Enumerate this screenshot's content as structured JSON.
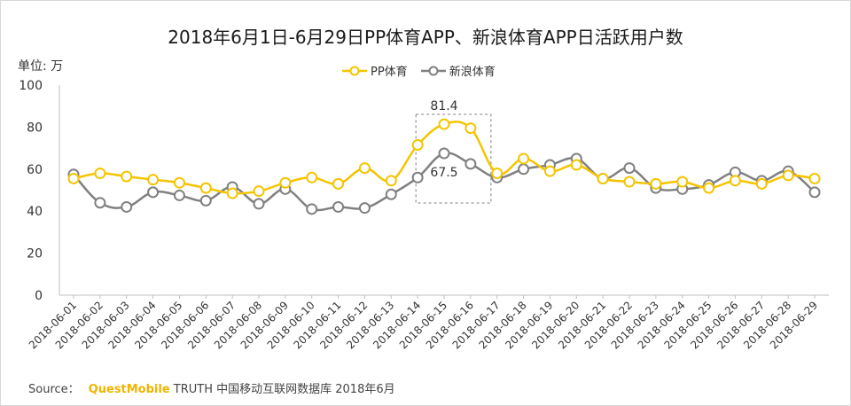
{
  "title": "2018年6月1日-6月29日PP体育APP、新浪体育APP日活跃用户数",
  "unit_label": "单位: 万",
  "source": {
    "prefix": "Source：",
    "brand": "QuestMobile",
    "rest": "TRUTH 中国移动互联网数据库 2018年6月"
  },
  "colors": {
    "pp": "#f5c400",
    "sina": "#808080",
    "axis": "#bfbfbf",
    "highlight_box": "#808080"
  },
  "chart_data": {
    "type": "line",
    "title": "2018年6月1日-6月29日PP体育APP、新浪体育APP日活跃用户数",
    "ylabel": "单位: 万",
    "ylim": [
      0,
      100
    ],
    "yticks": [
      0,
      20,
      40,
      60,
      80,
      100
    ],
    "grid": false,
    "legend_position": "top-center",
    "categories": [
      "2018-06-01",
      "2018-06-02",
      "2018-06-03",
      "2018-06-04",
      "2018-06-05",
      "2018-06-06",
      "2018-06-07",
      "2018-06-08",
      "2018-06-09",
      "2018-06-10",
      "2018-06-11",
      "2018-06-12",
      "2018-06-13",
      "2018-06-14",
      "2018-06-15",
      "2018-06-16",
      "2018-06-17",
      "2018-06-18",
      "2018-06-19",
      "2018-06-20",
      "2018-06-21",
      "2018-06-22",
      "2018-06-23",
      "2018-06-24",
      "2018-06-25",
      "2018-06-26",
      "2018-06-27",
      "2018-06-28",
      "2018-06-29"
    ],
    "series": [
      {
        "name": "PP体育",
        "values": [
          55.5,
          58,
          56.5,
          55,
          53.5,
          51,
          48.5,
          49.5,
          53.5,
          56,
          53,
          60.5,
          54.5,
          71.5,
          81.4,
          79.5,
          58,
          65,
          59,
          62,
          55.5,
          54,
          53,
          54,
          51,
          54.5,
          53,
          57,
          55.5
        ]
      },
      {
        "name": "新浪体育",
        "values": [
          57.5,
          44,
          42,
          49,
          47.5,
          45,
          51.5,
          43.5,
          50.5,
          41,
          42,
          41.5,
          48,
          56,
          67.5,
          62.5,
          56,
          60,
          62,
          65,
          55.5,
          60.5,
          51,
          50.5,
          52.5,
          58.5,
          54.5,
          59,
          49
        ]
      }
    ],
    "annotations": [
      {
        "text": "81.4",
        "series": "PP体育",
        "category": "2018-06-15"
      },
      {
        "text": "67.5",
        "series": "新浪体育",
        "category": "2018-06-15"
      }
    ],
    "highlight_range": [
      "2018-06-14",
      "2018-06-16"
    ]
  }
}
